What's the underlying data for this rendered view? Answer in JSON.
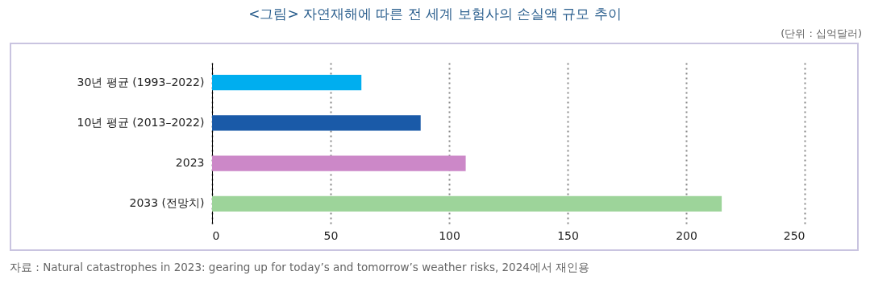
{
  "chart_data": {
    "type": "bar",
    "orientation": "horizontal",
    "title": "<그림> 자연재해에 따른 전 세계 보험사의 손실액 규모 추이",
    "annotations": [
      "(단위 : 십억달러)",
      "자료 : Natural catastrophes in 2023: gearing up for today’s and tomorrow’s weather risks, 2024에서 재인용"
    ],
    "categories": [
      "30년 평균 (1993–2022)",
      "10년 평균 (2013–2022)",
      "2023",
      "2033 (전망치)"
    ],
    "values": [
      63,
      88,
      107,
      215
    ],
    "colors": [
      "#00aeef",
      "#1a5aa8",
      "#cc88c8",
      "#9dd49a"
    ],
    "xlim": [
      0,
      250
    ],
    "xticks": [
      0,
      50,
      100,
      150,
      200,
      250
    ],
    "grid": "x"
  }
}
